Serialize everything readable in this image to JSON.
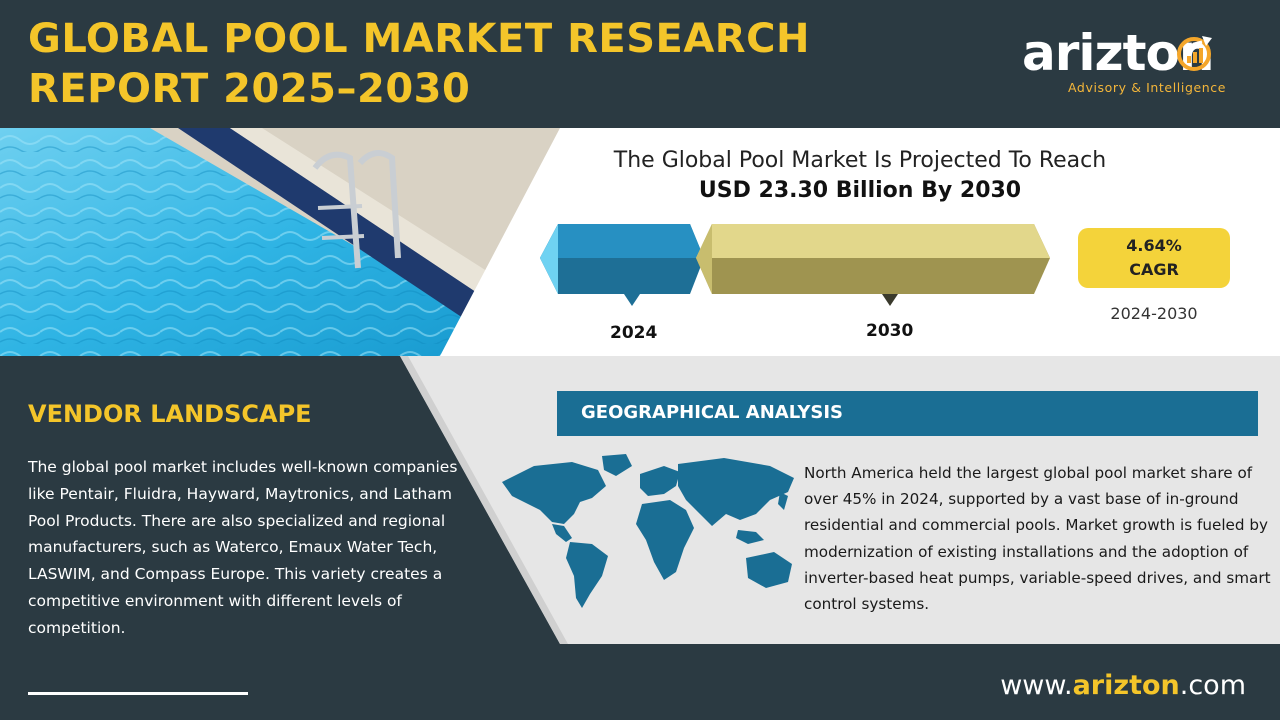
{
  "header": {
    "title_line1": "GLOBAL POOL MARKET RESEARCH",
    "title_line2": "REPORT 2025–2030"
  },
  "logo": {
    "word": "arizton",
    "tagline": "Advisory & Intelligence"
  },
  "projection": {
    "line1": "The Global Pool Market Is Projected To Reach",
    "line2": "USD 23.30 Billion By 2030",
    "year_start": "2024",
    "year_end": "2030",
    "cagr_value": "4.64%",
    "cagr_label": "CAGR",
    "cagr_range": "2024-2030"
  },
  "vendor": {
    "title": "VENDOR LANDSCAPE",
    "text": "The global pool market includes well-known companies like Pentair, Fluidra, Hayward, Maytronics, and Latham Pool Products. There are also specialized and regional manufacturers, such as Waterco, Emaux Water Tech, LASWIM, and Compass Europe. This variety creates a competitive environment with different levels of competition."
  },
  "geo": {
    "title": "GEOGRAPHICAL ANALYSIS",
    "text": "North America held the largest global pool market share of over 45% in 2024, supported by a vast base of in-ground residential and commercial pools. Market growth is fueled by modernization of existing installations and the adoption of inverter-based heat pumps, variable-speed drives, and smart control systems."
  },
  "footer": {
    "url_prefix": "www.",
    "url_brand": "arizton",
    "url_suffix": ".com"
  },
  "colors": {
    "navy": "#2b3a42",
    "yellow": "#f4c52a",
    "blue": "#1a6e94",
    "olive": "#a89a4a",
    "light_gray": "#e6e6e6"
  }
}
